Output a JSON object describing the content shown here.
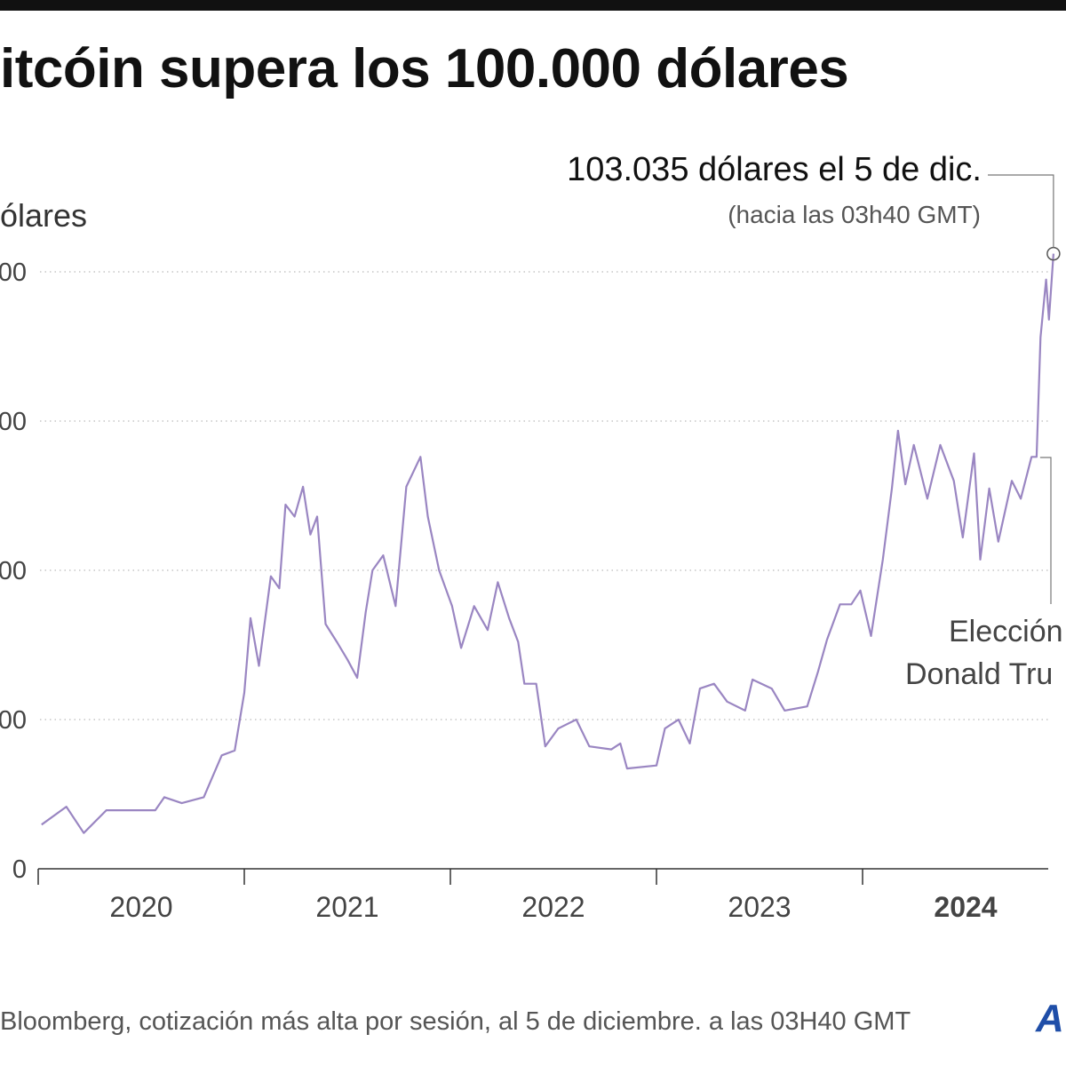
{
  "title": "itcóin supera los 100.000 dólares",
  "source": "Bloomberg, cotización más alta por sesión, al 5 de diciembre. a las 03H40 GMT",
  "logo": "A",
  "colors": {
    "line": "#9a86c2",
    "logo": "#1f4ea8"
  },
  "chart_data": {
    "type": "line",
    "ylabel": "ólares",
    "ylim": [
      0,
      100000
    ],
    "yticks": [
      0,
      25000,
      50000,
      75000,
      100000
    ],
    "ytick_labels": [
      "0",
      "00",
      "00",
      "00",
      "00"
    ],
    "xticks": [
      "2020",
      "2021",
      "2022",
      "2023",
      "2024"
    ],
    "xtick_bold": "2024",
    "grid": "horizontal dotted",
    "annotations": {
      "peak": {
        "label": "103.035 dólares el 5 de dic.",
        "sublabel": "(hacia las 03h40 GMT)",
        "date": "2024-12-05",
        "value": 103035
      },
      "election": {
        "line1": "Elección",
        "line2": "Donald Tru",
        "date": "2024-11-05"
      }
    },
    "series": [
      {
        "points": [
          [
            "2020-01-07",
            7400
          ],
          [
            "2020-02-20",
            10400
          ],
          [
            "2020-03-22",
            6000
          ],
          [
            "2020-05-01",
            9800
          ],
          [
            "2020-07-27",
            9800
          ],
          [
            "2020-08-12",
            12000
          ],
          [
            "2020-09-12",
            11000
          ],
          [
            "2020-10-21",
            12000
          ],
          [
            "2020-11-22",
            19000
          ],
          [
            "2020-12-15",
            19800
          ],
          [
            "2021-01-01",
            29500
          ],
          [
            "2021-01-12",
            42000
          ],
          [
            "2021-01-27",
            34000
          ],
          [
            "2021-02-17",
            49000
          ],
          [
            "2021-03-04",
            47000
          ],
          [
            "2021-03-15",
            61000
          ],
          [
            "2021-03-31",
            59000
          ],
          [
            "2021-04-15",
            64000
          ],
          [
            "2021-04-28",
            56000
          ],
          [
            "2021-05-10",
            59000
          ],
          [
            "2021-05-25",
            41000
          ],
          [
            "2021-06-14",
            38000
          ],
          [
            "2021-07-03",
            35000
          ],
          [
            "2021-07-20",
            32000
          ],
          [
            "2021-08-04",
            43000
          ],
          [
            "2021-08-16",
            50000
          ],
          [
            "2021-09-04",
            52500
          ],
          [
            "2021-09-26",
            44000
          ],
          [
            "2021-10-15",
            64000
          ],
          [
            "2021-11-09",
            69000
          ],
          [
            "2021-11-22",
            59000
          ],
          [
            "2021-12-12",
            50000
          ],
          [
            "2022-01-04",
            44000
          ],
          [
            "2022-01-20",
            37000
          ],
          [
            "2022-02-12",
            44000
          ],
          [
            "2022-03-08",
            40000
          ],
          [
            "2022-03-26",
            48000
          ],
          [
            "2022-04-15",
            42000
          ],
          [
            "2022-05-01",
            38000
          ],
          [
            "2022-05-12",
            31000
          ],
          [
            "2022-06-02",
            31000
          ],
          [
            "2022-06-18",
            20500
          ],
          [
            "2022-07-11",
            23500
          ],
          [
            "2022-08-12",
            25000
          ],
          [
            "2022-09-04",
            20500
          ],
          [
            "2022-10-13",
            20000
          ],
          [
            "2022-10-29",
            21000
          ],
          [
            "2022-11-10",
            16800
          ],
          [
            "2023-01-01",
            17300
          ],
          [
            "2023-01-16",
            23500
          ],
          [
            "2023-02-09",
            25000
          ],
          [
            "2023-03-01",
            21000
          ],
          [
            "2023-03-19",
            30200
          ],
          [
            "2023-04-13",
            31000
          ],
          [
            "2023-05-06",
            28000
          ],
          [
            "2023-06-07",
            26500
          ],
          [
            "2023-06-20",
            31700
          ],
          [
            "2023-07-24",
            30200
          ],
          [
            "2023-08-16",
            26500
          ],
          [
            "2023-09-25",
            27200
          ],
          [
            "2023-10-14",
            33000
          ],
          [
            "2023-10-30",
            38400
          ],
          [
            "2023-11-22",
            44300
          ],
          [
            "2023-12-12",
            44300
          ],
          [
            "2023-12-28",
            46600
          ],
          [
            "2024-01-16",
            39000
          ],
          [
            "2024-02-06",
            51800
          ],
          [
            "2024-02-22",
            63700
          ],
          [
            "2024-03-04",
            73400
          ],
          [
            "2024-03-17",
            64400
          ],
          [
            "2024-04-01",
            71000
          ],
          [
            "2024-04-25",
            62000
          ],
          [
            "2024-05-18",
            71000
          ],
          [
            "2024-06-11",
            65000
          ],
          [
            "2024-06-27",
            55500
          ],
          [
            "2024-07-17",
            69600
          ],
          [
            "2024-07-28",
            51800
          ],
          [
            "2024-08-13",
            63700
          ],
          [
            "2024-08-29",
            54800
          ],
          [
            "2024-09-22",
            65000
          ],
          [
            "2024-10-08",
            62000
          ],
          [
            "2024-10-27",
            69000
          ],
          [
            "2024-11-05",
            69000
          ],
          [
            "2024-11-12",
            89000
          ],
          [
            "2024-11-22",
            98700
          ],
          [
            "2024-11-27",
            92000
          ],
          [
            "2024-12-05",
            103035
          ]
        ]
      }
    ]
  }
}
